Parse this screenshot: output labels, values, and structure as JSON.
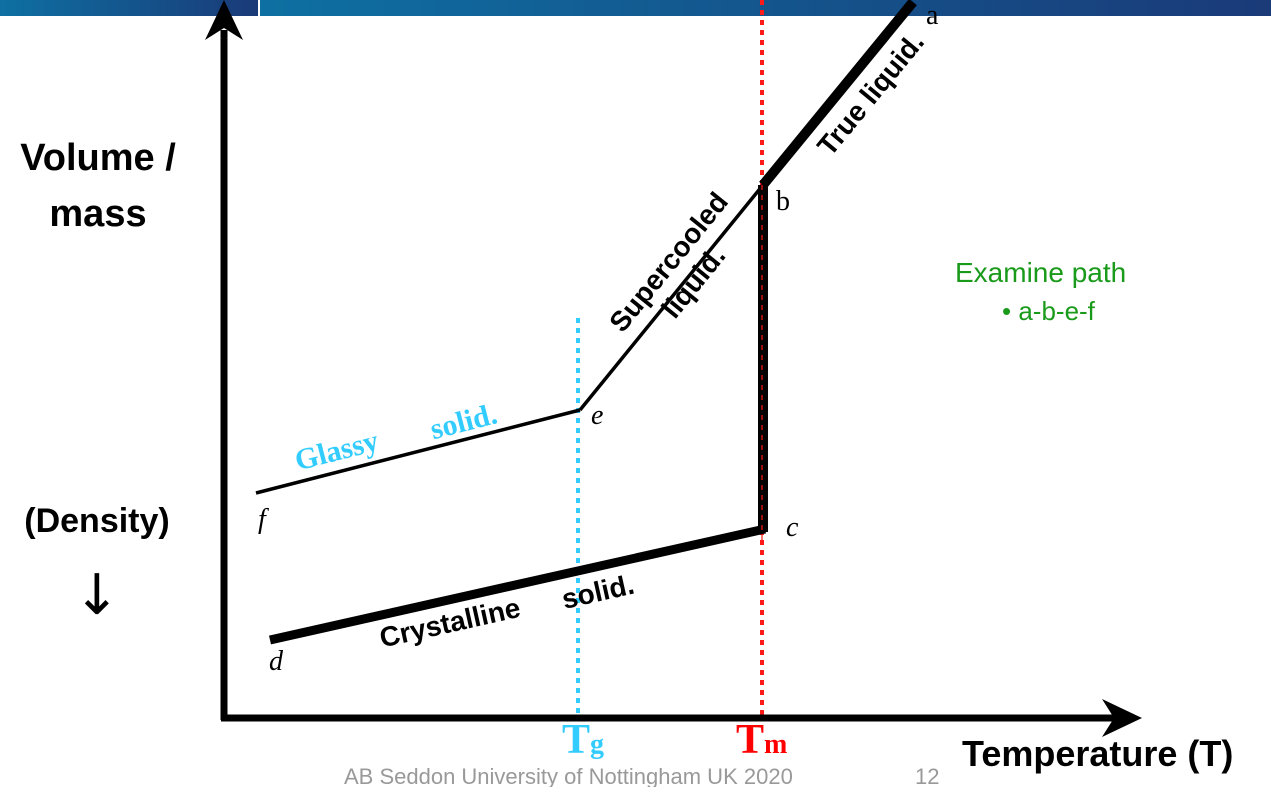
{
  "axes": {
    "y_label_line1": "Volume /",
    "y_label_line2": "mass",
    "y_alt_label": "(Density)",
    "y_alt_arrow": "↓",
    "x_label": "Temperature (T)"
  },
  "markers": {
    "tg": {
      "T": "T",
      "sub": "g",
      "color": "#33ccff"
    },
    "tm": {
      "T": "T",
      "sub": "m",
      "color": "#ff0000"
    }
  },
  "segments": {
    "true_liquid": "True liquid.",
    "supercooled_1": "Supercooled",
    "supercooled_2": "liquid.",
    "glassy_1": "Glassy",
    "glassy_2": "solid.",
    "crystalline_1": "Crystalline",
    "crystalline_2": "solid."
  },
  "points": {
    "a": "a",
    "b": "b",
    "c": "c",
    "d": "d",
    "e": "e",
    "f": "f"
  },
  "note": {
    "title": "Examine path",
    "bullet": "• a-b-e-f",
    "color": "#1a9a1a"
  },
  "footer": {
    "credit": "AB Seddon  University of Nottingham UK 2020",
    "page": "12"
  }
}
